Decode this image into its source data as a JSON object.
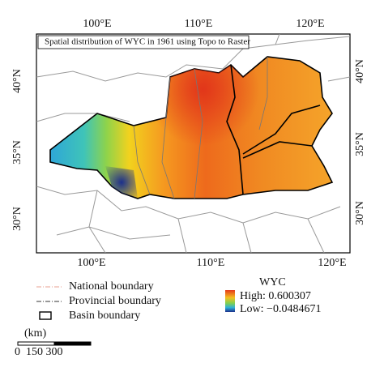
{
  "title": "Spatial distribution of WYC in 1961 using Topo to Raster",
  "axes": {
    "top": [
      "100°E",
      "110°E",
      "120°E"
    ],
    "bottom": [
      "100°E",
      "110°E",
      "120°E"
    ],
    "left": [
      "40°N",
      "35°N",
      "30°N"
    ],
    "right": [
      "40°N",
      "35°N",
      "30°N"
    ]
  },
  "legend": {
    "national": "National boundary",
    "provincial": "Provincial boundary",
    "basin": "Basin boundary",
    "wyc_title": "WYC",
    "high": "High: 0.600307",
    "low": "Low: −0.0484671"
  },
  "scale": {
    "unit": "(km)",
    "labels": "0  150 300"
  }
}
